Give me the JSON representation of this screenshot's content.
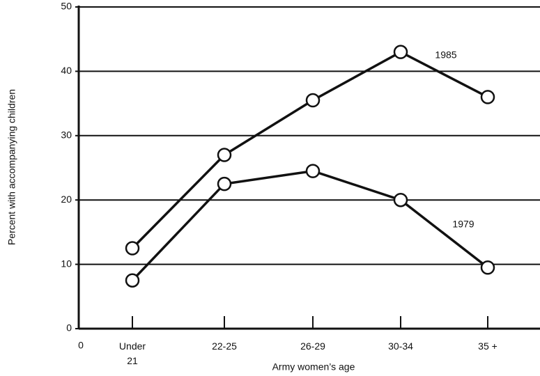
{
  "chart_data": {
    "type": "line",
    "x_axis_label": "Army women’s age",
    "y_axis_label": "Percent with accompanying children",
    "x_origin_label": "0",
    "categories": [
      "Under 21",
      "22-25",
      "26-29",
      "30-34",
      "35 +"
    ],
    "series": [
      {
        "name": "1985",
        "color": "#111111",
        "values": [
          12.5,
          27,
          35.5,
          43,
          36
        ]
      },
      {
        "name": "1979",
        "color": "#111111",
        "values": [
          7.5,
          22.5,
          24.5,
          20,
          9.5
        ]
      }
    ],
    "ylim": [
      0,
      50
    ],
    "yticks": [
      0,
      10,
      20,
      30,
      40,
      50
    ],
    "grid": true
  }
}
